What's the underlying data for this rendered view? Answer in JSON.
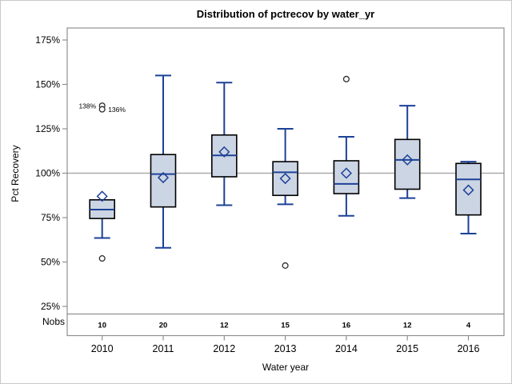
{
  "chart_data": {
    "type": "boxplot",
    "title": "Distribution of pctrecov by water_yr",
    "xlabel": "Water year",
    "ylabel": "Pct Recovery",
    "nobs_label": "Nobs",
    "ytick_format": "percent",
    "yticks": [
      25,
      50,
      75,
      100,
      125,
      150,
      175
    ],
    "ylim": [
      21,
      182
    ],
    "reference_line": 100,
    "grid": "off",
    "categories": [
      "2010",
      "2011",
      "2012",
      "2013",
      "2014",
      "2015",
      "2016"
    ],
    "nobs": [
      10,
      20,
      12,
      15,
      16,
      12,
      4
    ],
    "boxes": [
      {
        "category": "2010",
        "n": 10,
        "whisker_low": 63.5,
        "q1": 74.5,
        "median": 79.5,
        "q3": 85,
        "whisker_high": null,
        "mean": 87,
        "outliers": [
          {
            "value": 52,
            "label": null,
            "side": null
          },
          {
            "value": 138,
            "label": "138%",
            "side": "left"
          },
          {
            "value": 136,
            "label": "136%",
            "side": "right"
          }
        ]
      },
      {
        "category": "2011",
        "n": 20,
        "whisker_low": 58,
        "q1": 81,
        "median": 99.5,
        "q3": 110.5,
        "whisker_high": 155,
        "mean": 97.5,
        "outliers": []
      },
      {
        "category": "2012",
        "n": 12,
        "whisker_low": 82,
        "q1": 98,
        "median": 110,
        "q3": 121.5,
        "whisker_high": 151,
        "mean": 112,
        "outliers": []
      },
      {
        "category": "2013",
        "n": 15,
        "whisker_low": 82.5,
        "q1": 87.5,
        "median": 100.5,
        "q3": 106.5,
        "whisker_high": 125,
        "mean": 97,
        "outliers": [
          {
            "value": 48,
            "label": null,
            "side": null
          }
        ]
      },
      {
        "category": "2014",
        "n": 16,
        "whisker_low": 76,
        "q1": 88.5,
        "median": 94,
        "q3": 107,
        "whisker_high": 120.5,
        "mean": 100,
        "outliers": [
          {
            "value": 153,
            "label": null,
            "side": null
          }
        ]
      },
      {
        "category": "2015",
        "n": 12,
        "whisker_low": 86,
        "q1": 91,
        "median": 107.5,
        "q3": 119,
        "whisker_high": 138,
        "mean": 107.5,
        "outliers": []
      },
      {
        "category": "2016",
        "n": 4,
        "whisker_low": 66,
        "q1": 76.5,
        "median": 96.5,
        "q3": 105.5,
        "whisker_high": 106.5,
        "mean": 90.5,
        "outliers": []
      }
    ]
  },
  "colors": {
    "box_fill": "#ccd5e4",
    "box_stroke": "#000000",
    "line_blue": "#1c4197",
    "axis_gray": "#8f8f8f",
    "reference_line": "#ababab",
    "outlier_stroke": "#2b2b2b",
    "outer_border": "#c9c9c9",
    "text": "#000000"
  }
}
